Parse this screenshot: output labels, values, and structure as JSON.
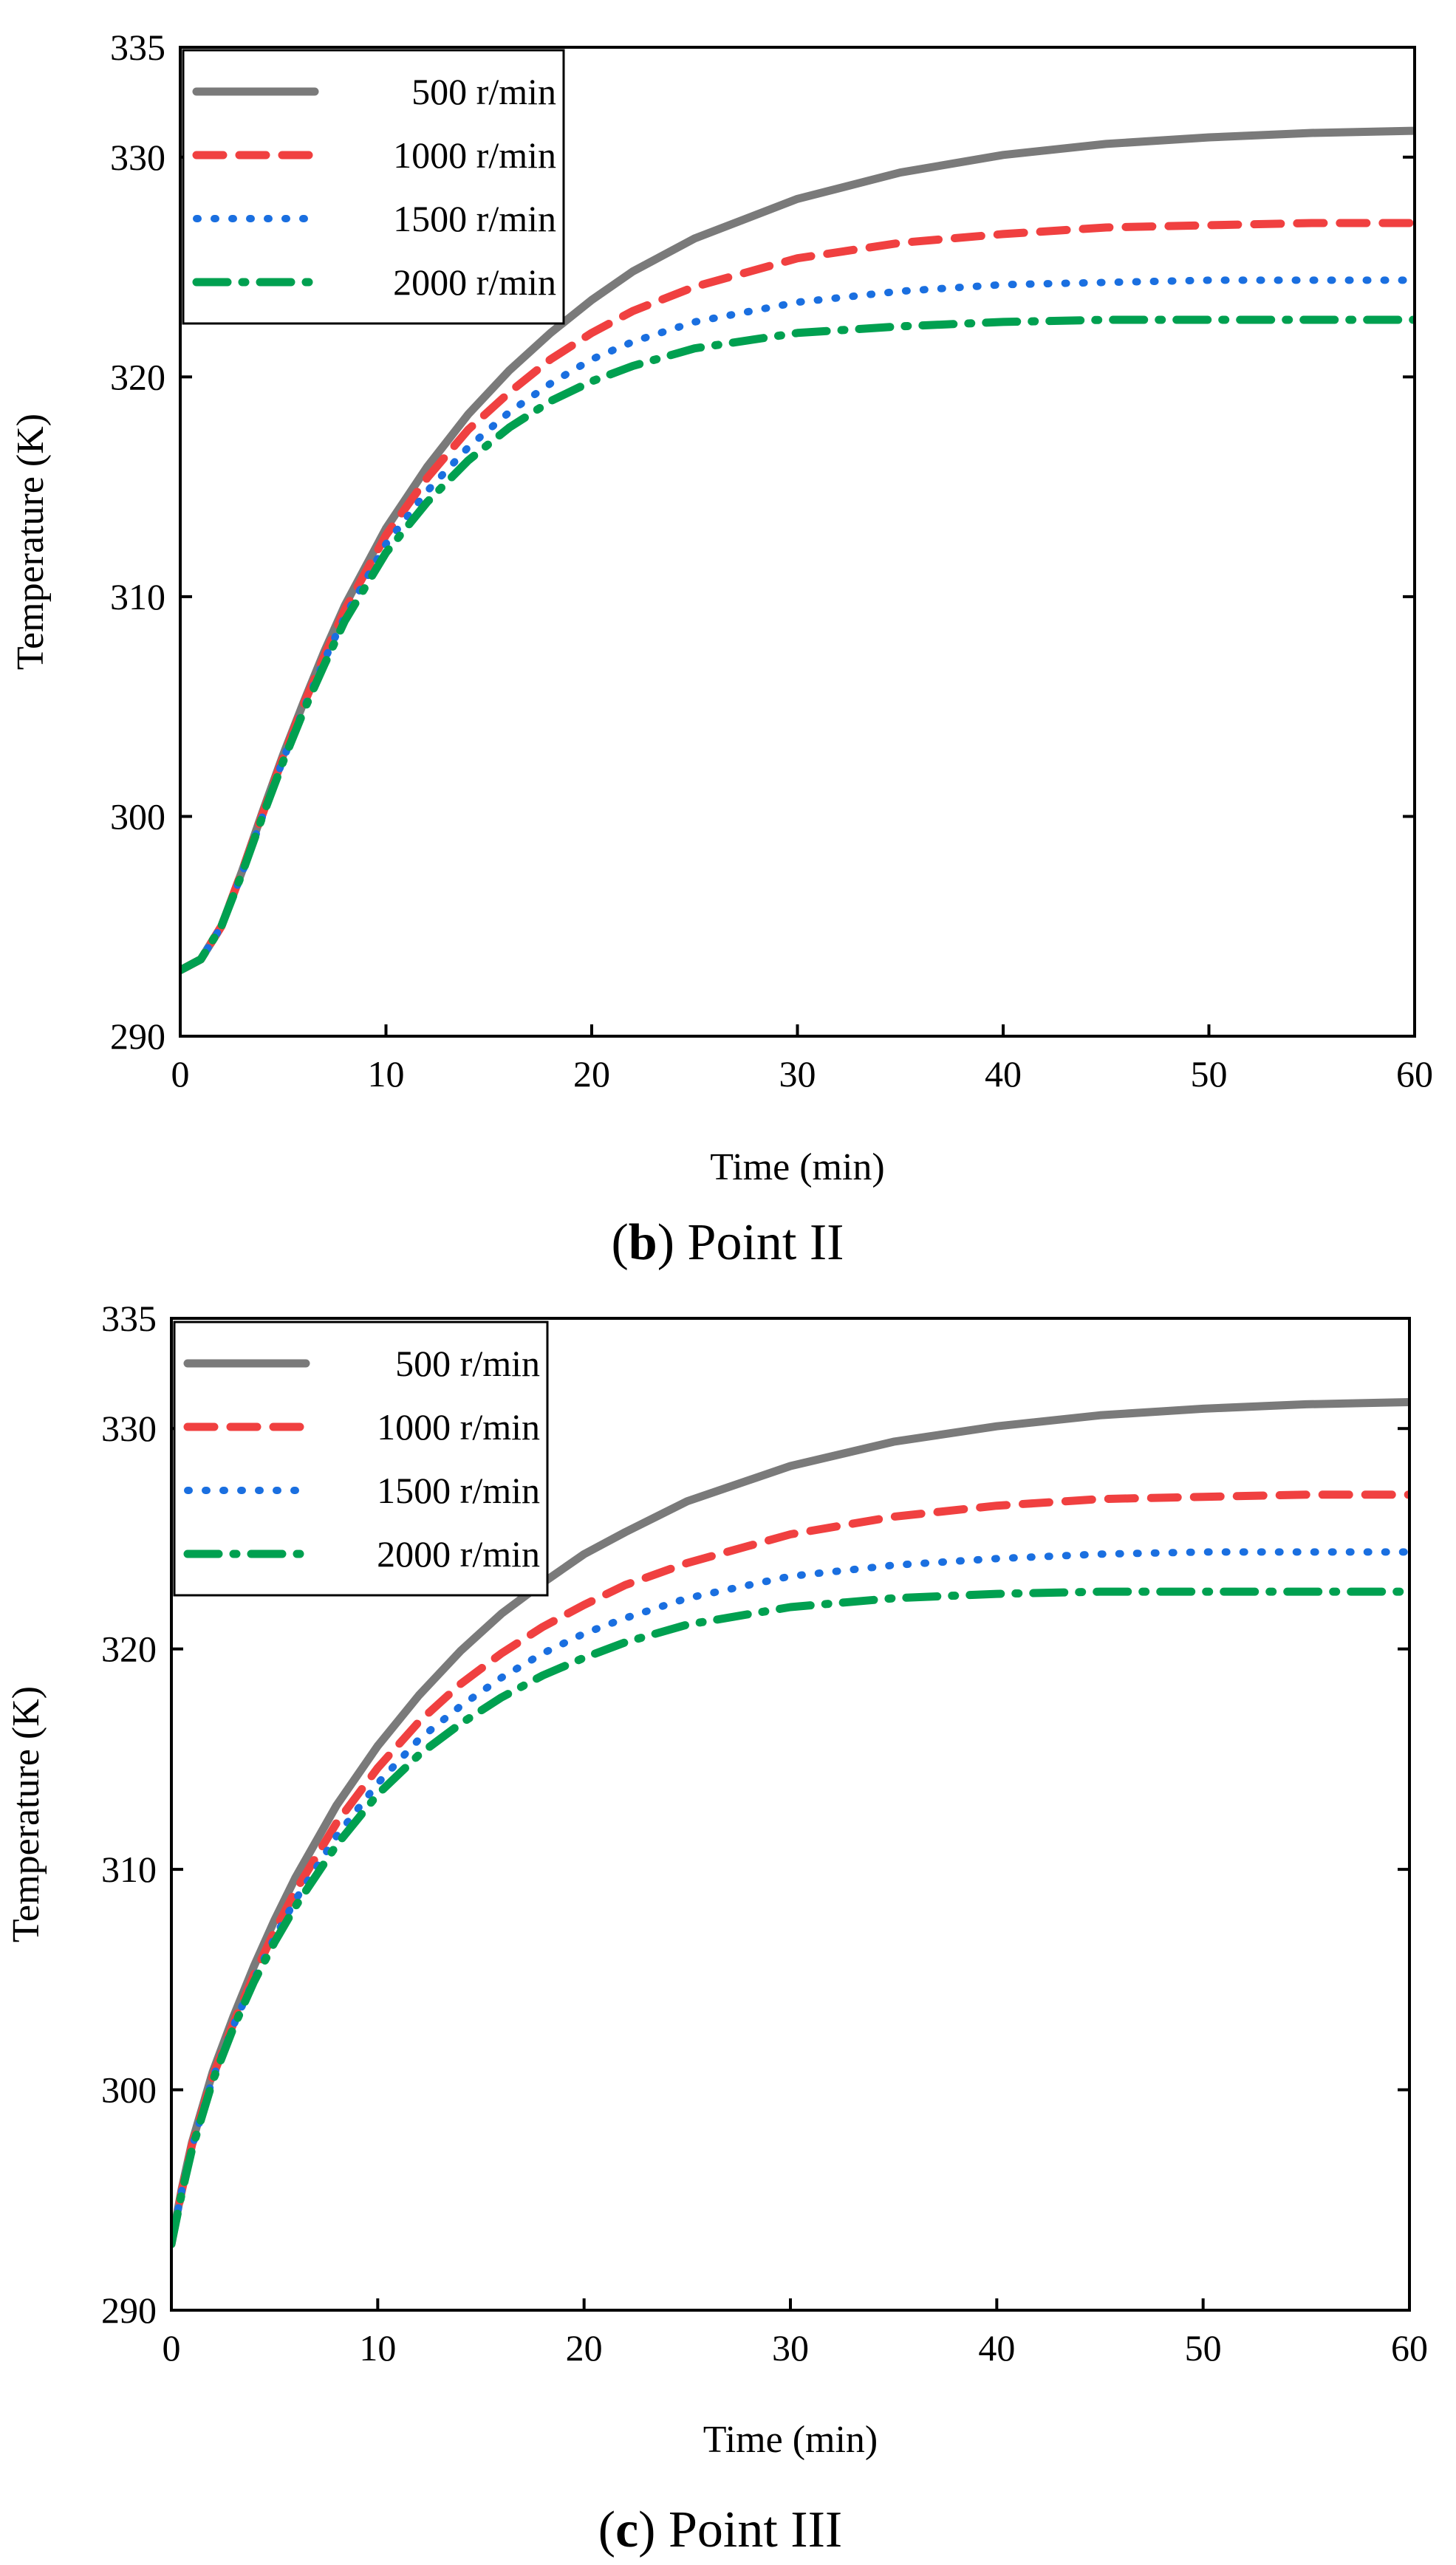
{
  "figure": {
    "subcaptions": [
      {
        "open": "(",
        "letter": "b",
        "rest": ") Point II"
      },
      {
        "open": "(",
        "letter": "c",
        "rest": ") Point III"
      }
    ]
  },
  "chart_data": [
    {
      "type": "line",
      "title": "",
      "xlabel": "Time (min)",
      "ylabel": "Temperature (K)",
      "xlim": [
        0,
        60
      ],
      "ylim": [
        290,
        335
      ],
      "xticks": [
        0,
        10,
        20,
        30,
        40,
        50,
        60
      ],
      "yticks": [
        290,
        300,
        310,
        320,
        330,
        335
      ],
      "grid": false,
      "legend_position": "top-left",
      "x": [
        0,
        1,
        2,
        3,
        4,
        5,
        6,
        7,
        8,
        10,
        12,
        14,
        16,
        18,
        20,
        22,
        25,
        30,
        35,
        40,
        45,
        50,
        55,
        60
      ],
      "series": [
        {
          "name": "500 r/min",
          "color": "#7a7a7a",
          "style": "solid",
          "values": [
            293.0,
            293.5,
            295.0,
            297.5,
            300.2,
            302.8,
            305.2,
            307.5,
            309.6,
            313.1,
            315.9,
            318.3,
            320.3,
            322.0,
            323.5,
            324.8,
            326.3,
            328.1,
            329.3,
            330.1,
            330.6,
            330.9,
            331.1,
            331.2
          ]
        },
        {
          "name": "1000 r/min",
          "color": "#f04040",
          "style": "dashed",
          "values": [
            293.0,
            293.5,
            295.0,
            297.5,
            300.1,
            302.7,
            305.1,
            307.3,
            309.4,
            312.8,
            315.4,
            317.6,
            319.3,
            320.8,
            322.0,
            323.0,
            324.1,
            325.4,
            326.1,
            326.5,
            326.8,
            326.9,
            327.0,
            327.0
          ]
        },
        {
          "name": "1500 r/min",
          "color": "#1a6fe0",
          "style": "dotted",
          "values": [
            293.0,
            293.5,
            295.0,
            297.4,
            300.0,
            302.6,
            304.9,
            307.1,
            309.1,
            312.4,
            314.8,
            316.8,
            318.4,
            319.7,
            320.8,
            321.6,
            322.5,
            323.4,
            323.9,
            324.2,
            324.3,
            324.4,
            324.4,
            324.4
          ]
        },
        {
          "name": "2000 r/min",
          "color": "#00a050",
          "style": "dash-dot",
          "values": [
            293.0,
            293.5,
            295.0,
            297.4,
            300.0,
            302.5,
            304.8,
            306.9,
            308.9,
            312.0,
            314.3,
            316.2,
            317.7,
            318.9,
            319.8,
            320.5,
            321.3,
            322.0,
            322.3,
            322.5,
            322.6,
            322.6,
            322.6,
            322.6
          ]
        }
      ]
    },
    {
      "type": "line",
      "title": "",
      "xlabel": "Time (min)",
      "ylabel": "Temperature (K)",
      "xlim": [
        0,
        60
      ],
      "ylim": [
        290,
        335
      ],
      "xticks": [
        0,
        10,
        20,
        30,
        40,
        50,
        60
      ],
      "yticks": [
        290,
        300,
        310,
        320,
        330,
        335
      ],
      "grid": false,
      "legend_position": "top-left",
      "x": [
        0,
        0.5,
        1,
        2,
        3,
        4,
        5,
        6,
        8,
        10,
        12,
        14,
        16,
        18,
        20,
        22,
        25,
        30,
        35,
        40,
        45,
        50,
        55,
        60
      ],
      "series": [
        {
          "name": "500 r/min",
          "color": "#7a7a7a",
          "style": "solid",
          "values": [
            293.0,
            295.5,
            297.6,
            300.8,
            303.3,
            305.6,
            307.7,
            309.6,
            312.9,
            315.6,
            317.9,
            319.9,
            321.6,
            323.0,
            324.3,
            325.3,
            326.7,
            328.3,
            329.4,
            330.1,
            330.6,
            330.9,
            331.1,
            331.2
          ]
        },
        {
          "name": "1000 r/min",
          "color": "#f04040",
          "style": "dashed",
          "values": [
            293.0,
            295.4,
            297.5,
            300.6,
            303.0,
            305.2,
            307.2,
            309.0,
            312.1,
            314.6,
            316.7,
            318.4,
            319.8,
            321.0,
            322.0,
            322.9,
            323.9,
            325.2,
            326.0,
            326.5,
            326.8,
            326.9,
            327.0,
            327.0
          ]
        },
        {
          "name": "1500 r/min",
          "color": "#1a6fe0",
          "style": "dotted",
          "values": [
            293.0,
            295.4,
            297.4,
            300.5,
            302.9,
            305.0,
            306.9,
            308.6,
            311.5,
            313.9,
            315.9,
            317.4,
            318.7,
            319.8,
            320.7,
            321.4,
            322.3,
            323.3,
            323.8,
            324.1,
            324.3,
            324.4,
            324.4,
            324.4
          ]
        },
        {
          "name": "2000 r/min",
          "color": "#00a050",
          "style": "dash-dot",
          "values": [
            293.0,
            295.3,
            297.3,
            300.4,
            302.8,
            304.9,
            306.7,
            308.3,
            311.1,
            313.4,
            315.2,
            316.6,
            317.8,
            318.8,
            319.6,
            320.3,
            321.1,
            321.9,
            322.3,
            322.5,
            322.6,
            322.6,
            322.6,
            322.6
          ]
        }
      ]
    }
  ]
}
